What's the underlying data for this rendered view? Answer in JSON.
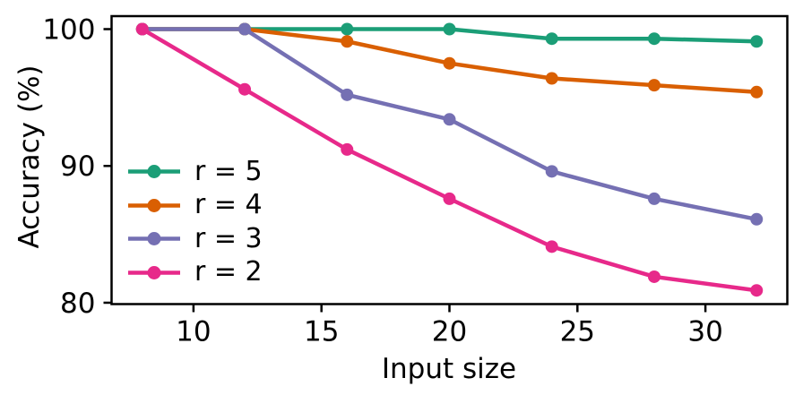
{
  "figure": {
    "background": "#ffffff",
    "axis_color": "#000000",
    "text_color": "#000000"
  },
  "chart_data": {
    "type": "line",
    "title": "",
    "xlabel": "Input size",
    "ylabel": "Accuracy (%)",
    "x": [
      8,
      12,
      16,
      20,
      24,
      28,
      32
    ],
    "series": [
      {
        "name": "r = 5",
        "color": "#1b9e77",
        "values": [
          100,
          100,
          100,
          100,
          99.3,
          99.3,
          99.1
        ]
      },
      {
        "name": "r = 4",
        "color": "#d95f02",
        "values": [
          100,
          100,
          99.1,
          97.5,
          96.4,
          95.9,
          95.4
        ]
      },
      {
        "name": "r = 3",
        "color": "#7570b3",
        "values": [
          100,
          100,
          95.2,
          93.4,
          89.6,
          87.6,
          86.1
        ]
      },
      {
        "name": "r = 2",
        "color": "#e7298a",
        "values": [
          100,
          95.6,
          91.2,
          87.6,
          84.1,
          81.9,
          80.9
        ]
      }
    ],
    "xlim": [
      6.8,
      33.2
    ],
    "ylim": [
      79.9,
      100.95
    ],
    "xticks": [
      10,
      15,
      20,
      25,
      30
    ],
    "yticks": [
      80,
      90,
      100
    ],
    "grid": false,
    "legend_position": "center-left",
    "legend_frame": false,
    "marker": "circle"
  }
}
